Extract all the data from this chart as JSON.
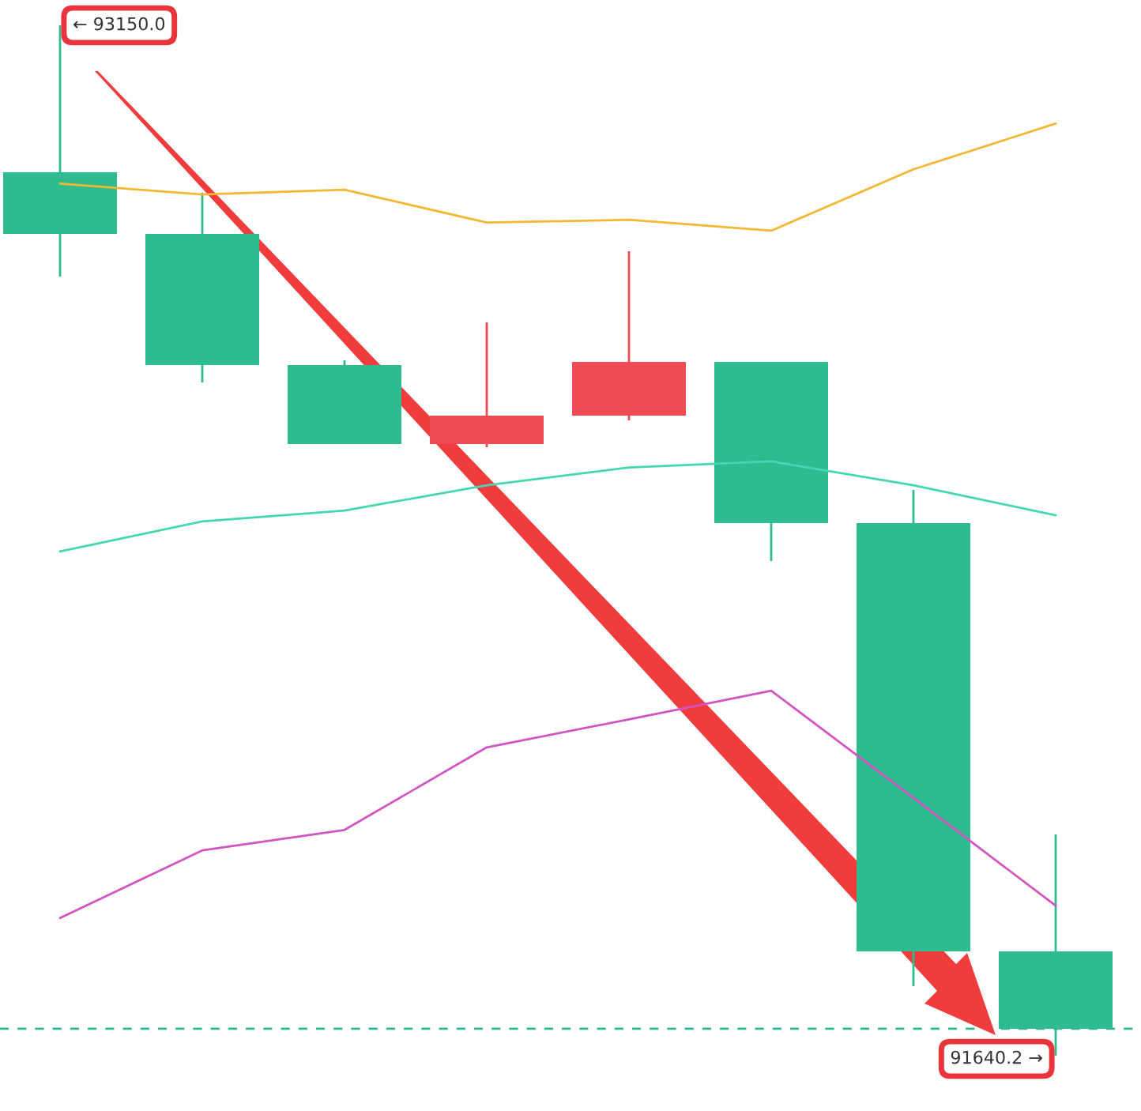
{
  "chart_data": {
    "type": "candlestick",
    "categories": [
      null,
      null,
      null,
      null,
      null,
      null,
      null,
      null
    ],
    "ohlc": [
      [
        92934.6,
        93150.0,
        92781.8,
        92844.3
      ],
      [
        92844.3,
        92904.5,
        92626.7,
        92652.1
      ],
      [
        92652.1,
        92659.1,
        92536.4,
        92536.4
      ],
      [
        92536.4,
        92714.7,
        92531.7,
        92578.0
      ],
      [
        92578.0,
        92818.9,
        92571.1,
        92656.8
      ],
      [
        92656.8,
        92656.8,
        92365.0,
        92420.6
      ],
      [
        92420.6,
        92469.2,
        91742.1,
        91793.1
      ],
      [
        91793.1,
        91964.4,
        91640.2,
        91679.6
      ]
    ],
    "colors": [
      "#2dbb8f",
      "#2dbb8f",
      "#2dbb8f",
      "#ef4b55",
      "#ef4b55",
      "#2dbb8f",
      "#2dbb8f",
      "#2dbb8f"
    ],
    "series": [
      {
        "type": "line",
        "color": "#f2b733",
        "values": [
          92918,
          92902,
          92909,
          92861,
          92865,
          92849,
          92939,
          93006
        ]
      },
      {
        "type": "line",
        "color": "#45d6b3",
        "values": [
          92379,
          92423,
          92439,
          92476,
          92502,
          92511,
          92476,
          92432
        ]
      },
      {
        "type": "line",
        "color": "#d254c2",
        "values": [
          91842,
          91941,
          91971,
          92092,
          92133,
          92175,
          92018,
          91860
        ]
      }
    ],
    "ref_lines": [
      {
        "axis": "y",
        "value": 91679.6,
        "color": "#2dbb8f",
        "line_style": "dashed"
      }
    ],
    "annotations": [
      "← 93150.0",
      "91640.2 →"
    ],
    "legend": false
  }
}
